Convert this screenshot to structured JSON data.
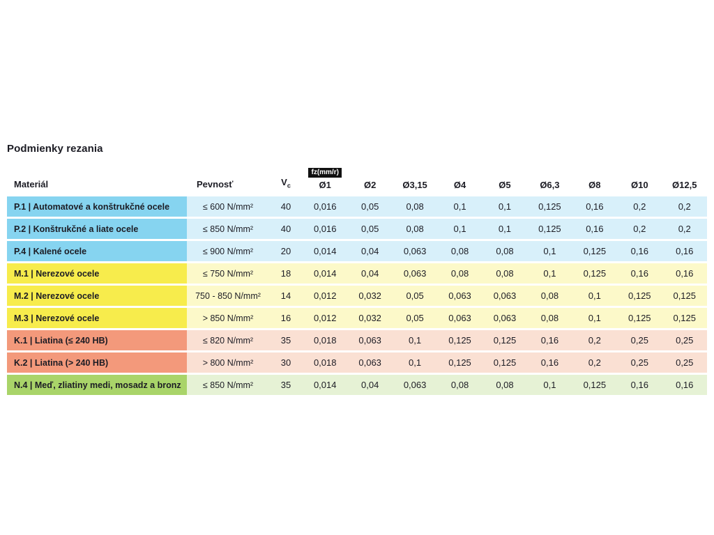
{
  "title": "Podmienky rezania",
  "chart_data": {
    "type": "table",
    "title": "Podmienky rezania",
    "fz_unit_label": "fz(mm/r)",
    "headers": {
      "material": "Materiál",
      "pevnost": "Pevnosť",
      "vc_base": "V",
      "vc_sub": "c"
    },
    "diameter_columns": [
      "Ø1",
      "Ø2",
      "Ø3,15",
      "Ø4",
      "Ø5",
      "Ø6,3",
      "Ø8",
      "Ø10",
      "Ø12,5"
    ],
    "rows": [
      {
        "group": "P",
        "material": "P.1 | Automatové a konštrukčné ocele",
        "pevnost": "≤ 600 N/mm²",
        "vc": "40",
        "fz": [
          "0,016",
          "0,05",
          "0,08",
          "0,1",
          "0,1",
          "0,125",
          "0,16",
          "0,2",
          "0,2"
        ]
      },
      {
        "group": "P",
        "material": "P.2 | Konštrukčné a liate ocele",
        "pevnost": "≤ 850 N/mm²",
        "vc": "40",
        "fz": [
          "0,016",
          "0,05",
          "0,08",
          "0,1",
          "0,1",
          "0,125",
          "0,16",
          "0,2",
          "0,2"
        ]
      },
      {
        "group": "P",
        "material": "P.4 | Kalené ocele",
        "pevnost": "≤ 900 N/mm²",
        "vc": "20",
        "fz": [
          "0,014",
          "0,04",
          "0,063",
          "0,08",
          "0,08",
          "0,1",
          "0,125",
          "0,16",
          "0,16"
        ]
      },
      {
        "group": "M",
        "material": "M.1 | Nerezové ocele",
        "pevnost": "≤ 750 N/mm²",
        "vc": "18",
        "fz": [
          "0,014",
          "0,04",
          "0,063",
          "0,08",
          "0,08",
          "0,1",
          "0,125",
          "0,16",
          "0,16"
        ]
      },
      {
        "group": "M",
        "material": "M.2 | Nerezové ocele",
        "pevnost": "750 - 850 N/mm²",
        "vc": "14",
        "fz": [
          "0,012",
          "0,032",
          "0,05",
          "0,063",
          "0,063",
          "0,08",
          "0,1",
          "0,125",
          "0,125"
        ]
      },
      {
        "group": "M",
        "material": "M.3 | Nerezové ocele",
        "pevnost": "> 850 N/mm²",
        "vc": "16",
        "fz": [
          "0,012",
          "0,032",
          "0,05",
          "0,063",
          "0,063",
          "0,08",
          "0,1",
          "0,125",
          "0,125"
        ]
      },
      {
        "group": "K",
        "material": "K.1 | Liatina (≤ 240 HB)",
        "pevnost": "≤ 820 N/mm²",
        "vc": "35",
        "fz": [
          "0,018",
          "0,063",
          "0,1",
          "0,125",
          "0,125",
          "0,16",
          "0,2",
          "0,25",
          "0,25"
        ]
      },
      {
        "group": "K",
        "material": "K.2 | Liatina (> 240 HB)",
        "pevnost": "> 800 N/mm²",
        "vc": "30",
        "fz": [
          "0,018",
          "0,063",
          "0,1",
          "0,125",
          "0,125",
          "0,16",
          "0,2",
          "0,25",
          "0,25"
        ]
      },
      {
        "group": "N",
        "material": "N.4 | Meď, zliatiny medi, mosadz a bronz",
        "pevnost": "≤ 850 N/mm²",
        "vc": "35",
        "fz": [
          "0,014",
          "0,04",
          "0,063",
          "0,08",
          "0,08",
          "0,1",
          "0,125",
          "0,16",
          "0,16"
        ]
      }
    ]
  },
  "colors": {
    "P": {
      "label": "#86d4f0",
      "row": "#d8f0fa"
    },
    "M": {
      "label": "#f7ec4c",
      "row": "#fcf9c9"
    },
    "K": {
      "label": "#f3997b",
      "row": "#fae0d3"
    },
    "N": {
      "label": "#a9d469",
      "row": "#e6f2d5"
    }
  }
}
